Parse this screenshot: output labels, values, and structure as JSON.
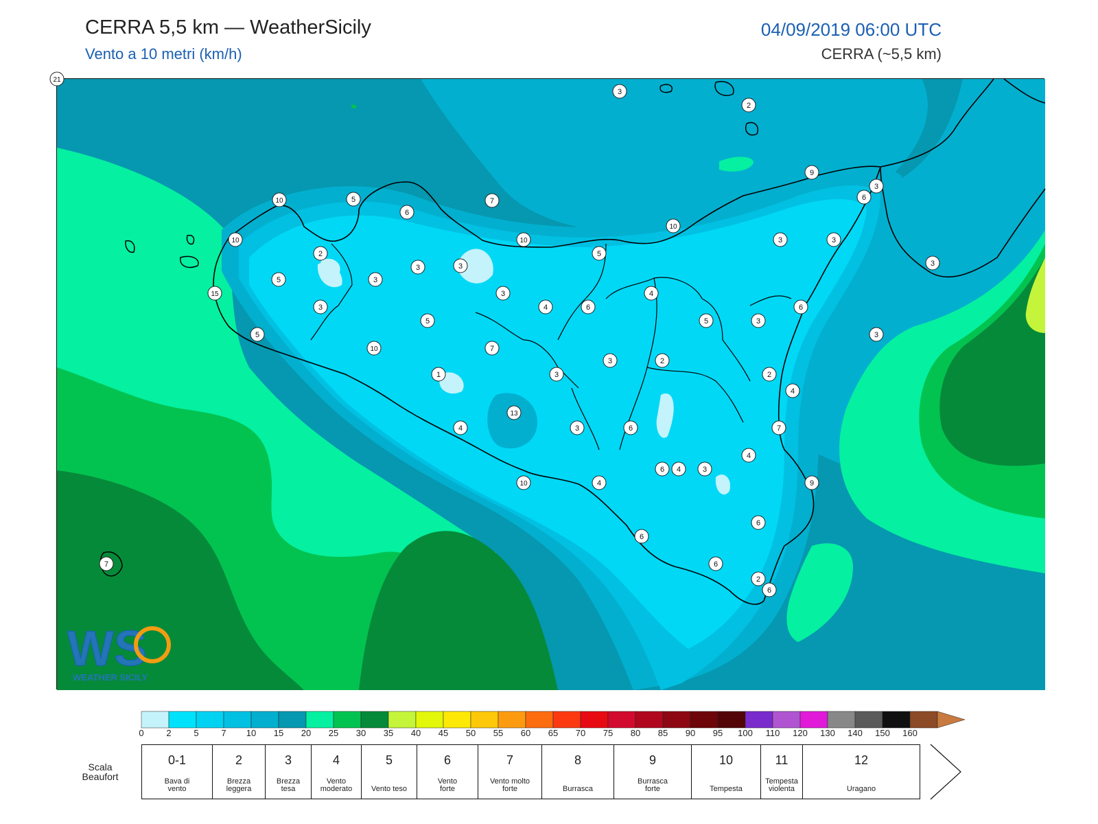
{
  "header": {
    "title": "CERRA 5,5 km — WeatherSicily",
    "subtitle": "Vento a 10 metri (km/h)",
    "datetime": "04/09/2019 06:00 UTC",
    "model": "CERRA (~5,5 km)"
  },
  "logo": {
    "letters": "WS",
    "text": "WEATHER SICILY",
    "icon": "weathersicily-logo"
  },
  "palette": {
    "land_light": "#00d8f6",
    "sea_deep": "#0598b0",
    "mid_blue": "#03afcf",
    "mint": "#05f0a0",
    "green": "#03c350",
    "dark_green": "#058a3a",
    "lime": "#c4f53a"
  },
  "colorbar": {
    "ticks": [
      "0",
      "2",
      "5",
      "7",
      "10",
      "15",
      "20",
      "25",
      "30",
      "35",
      "40",
      "45",
      "50",
      "55",
      "60",
      "65",
      "70",
      "75",
      "80",
      "85",
      "90",
      "95",
      "100",
      "110",
      "120",
      "130",
      "140",
      "150",
      "160"
    ],
    "colors": [
      "#c4f3fb",
      "#00e2fb",
      "#00d2f2",
      "#01c0e2",
      "#03afcf",
      "#0598b0",
      "#05f0a0",
      "#03c350",
      "#058a3a",
      "#c4f53a",
      "#e2f70a",
      "#fde907",
      "#fdc809",
      "#fd9b10",
      "#fc6d10",
      "#fc3a12",
      "#e80a12",
      "#d10a2e",
      "#b0071f",
      "#8c0711",
      "#6d0509",
      "#520406",
      "#7a2bcb",
      "#b054d1",
      "#e01ad8",
      "#888888",
      "#5a5a5a",
      "#101010",
      "#8c4a26",
      "#c87a40"
    ]
  },
  "beaufort": {
    "title_line1": "Scala",
    "title_line2": "Beaufort",
    "levels": [
      {
        "num": "0-1",
        "l1": "Bava di",
        "l2": "vento"
      },
      {
        "num": "2",
        "l1": "Brezza",
        "l2": "leggera"
      },
      {
        "num": "3",
        "l1": "Brezza",
        "l2": "tesa"
      },
      {
        "num": "4",
        "l1": "Vento",
        "l2": "moderato"
      },
      {
        "num": "5",
        "l1": "Vento teso",
        "l2": ""
      },
      {
        "num": "6",
        "l1": "Vento",
        "l2": "forte"
      },
      {
        "num": "7",
        "l1": "Vento molto",
        "l2": "forte"
      },
      {
        "num": "8",
        "l1": "Burrasca",
        "l2": ""
      },
      {
        "num": "9",
        "l1": "Burrasca",
        "l2": "forte"
      },
      {
        "num": "10",
        "l1": "Tempesta",
        "l2": ""
      },
      {
        "num": "11",
        "l1": "Tempesta",
        "l2": "violenta"
      },
      {
        "num": "12",
        "l1": "Uragano",
        "l2": ""
      }
    ]
  },
  "stations": [
    "3",
    "2",
    "9",
    "3",
    "10",
    "5",
    "6",
    "7",
    "10",
    "10",
    "10",
    "3",
    "3",
    "2",
    "3",
    "3",
    "5",
    "5",
    "3",
    "3",
    "4",
    "15",
    "3",
    "4",
    "6",
    "4",
    "6",
    "5",
    "5",
    "3",
    "10",
    "7",
    "5",
    "6",
    "3",
    "2",
    "3",
    "1",
    "2",
    "4",
    "3",
    "13",
    "6",
    "3",
    "7",
    "4",
    "6",
    "3",
    "4",
    "10",
    "4",
    "3",
    "6",
    "9",
    "6",
    "2",
    "6",
    "6",
    "7",
    "21"
  ]
}
